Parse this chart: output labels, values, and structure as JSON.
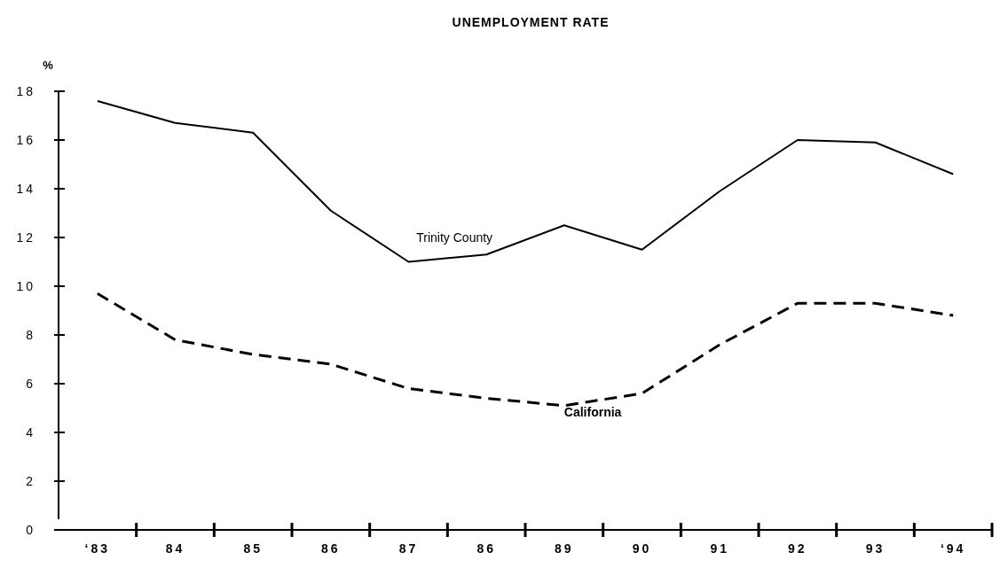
{
  "chart_data": {
    "type": "line",
    "title": "UNEMPLOYMENT RATE",
    "ylabel": "%",
    "categories": [
      "‘83",
      "84",
      "85",
      "86",
      "87",
      "86",
      "89",
      "90",
      "91",
      "92",
      "93",
      "‘94"
    ],
    "series": [
      {
        "name": "Trinity County",
        "color": "#000000",
        "line_style": "solid",
        "values": [
          17.6,
          16.7,
          16.3,
          13.1,
          11.0,
          11.3,
          12.5,
          11.5,
          13.9,
          16.0,
          15.9,
          14.6
        ]
      },
      {
        "name": "California",
        "color": "#000000",
        "line_style": "dashed",
        "values": [
          9.7,
          7.8,
          7.2,
          6.8,
          5.8,
          5.4,
          5.1,
          5.6,
          7.6,
          9.3,
          9.3,
          8.8
        ]
      }
    ],
    "ylim": [
      0,
      18
    ],
    "yticks": [
      0,
      2,
      4,
      6,
      8,
      10,
      12,
      14,
      16,
      18
    ],
    "grid": false,
    "marker": "none"
  }
}
